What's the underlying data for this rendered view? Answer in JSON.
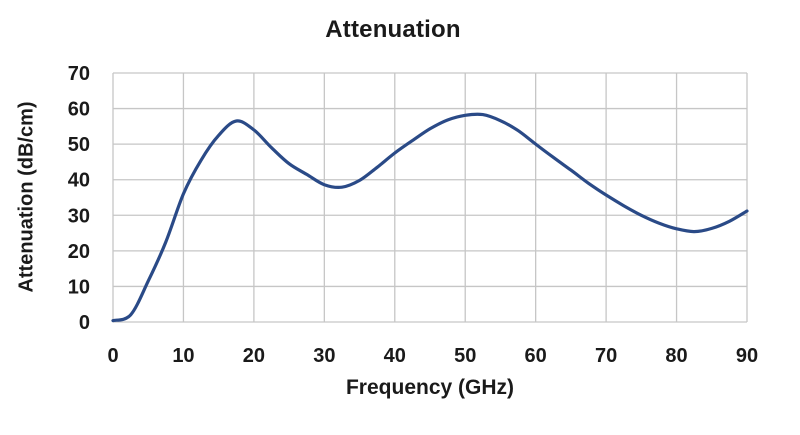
{
  "chart_data": {
    "type": "line",
    "title": "Attenuation",
    "xlabel": "Frequency (GHz)",
    "ylabel": "Attenuation (dB/cm)",
    "xlim": [
      0,
      90
    ],
    "ylim": [
      0,
      70
    ],
    "x_ticks": [
      0,
      10,
      20,
      30,
      40,
      50,
      60,
      70,
      80,
      90
    ],
    "y_ticks": [
      0,
      10,
      20,
      30,
      40,
      50,
      60,
      70
    ],
    "grid": true,
    "legend_position": "none",
    "series": [
      {
        "name": "Attenuation",
        "x": [
          0,
          2.5,
          5,
          7.5,
          10,
          12.5,
          15,
          17.5,
          20,
          22.5,
          25,
          27.5,
          30,
          32.5,
          35,
          37.5,
          40,
          42.5,
          45,
          47.5,
          50,
          52.5,
          55,
          57.5,
          60,
          62.5,
          65,
          67.5,
          70,
          72.5,
          75,
          77.5,
          80,
          82.5,
          85,
          87.5,
          90
        ],
        "values": [
          0.4,
          2,
          11.5,
          22.5,
          36,
          45.5,
          52.5,
          56.5,
          54,
          49,
          44.5,
          41.5,
          38.6,
          37.9,
          39.8,
          43.5,
          47.5,
          51,
          54.3,
          56.8,
          58.1,
          58.3,
          56.6,
          53.8,
          50,
          46.3,
          42.7,
          39,
          35.7,
          32.7,
          30,
          27.8,
          26.2,
          25.4,
          26.3,
          28.3,
          31.2
        ]
      }
    ]
  },
  "style": {
    "line_color": "#2a4a87",
    "grid_color": "#c6c6c6",
    "text_color": "#1a1a1a",
    "background": "#ffffff"
  }
}
